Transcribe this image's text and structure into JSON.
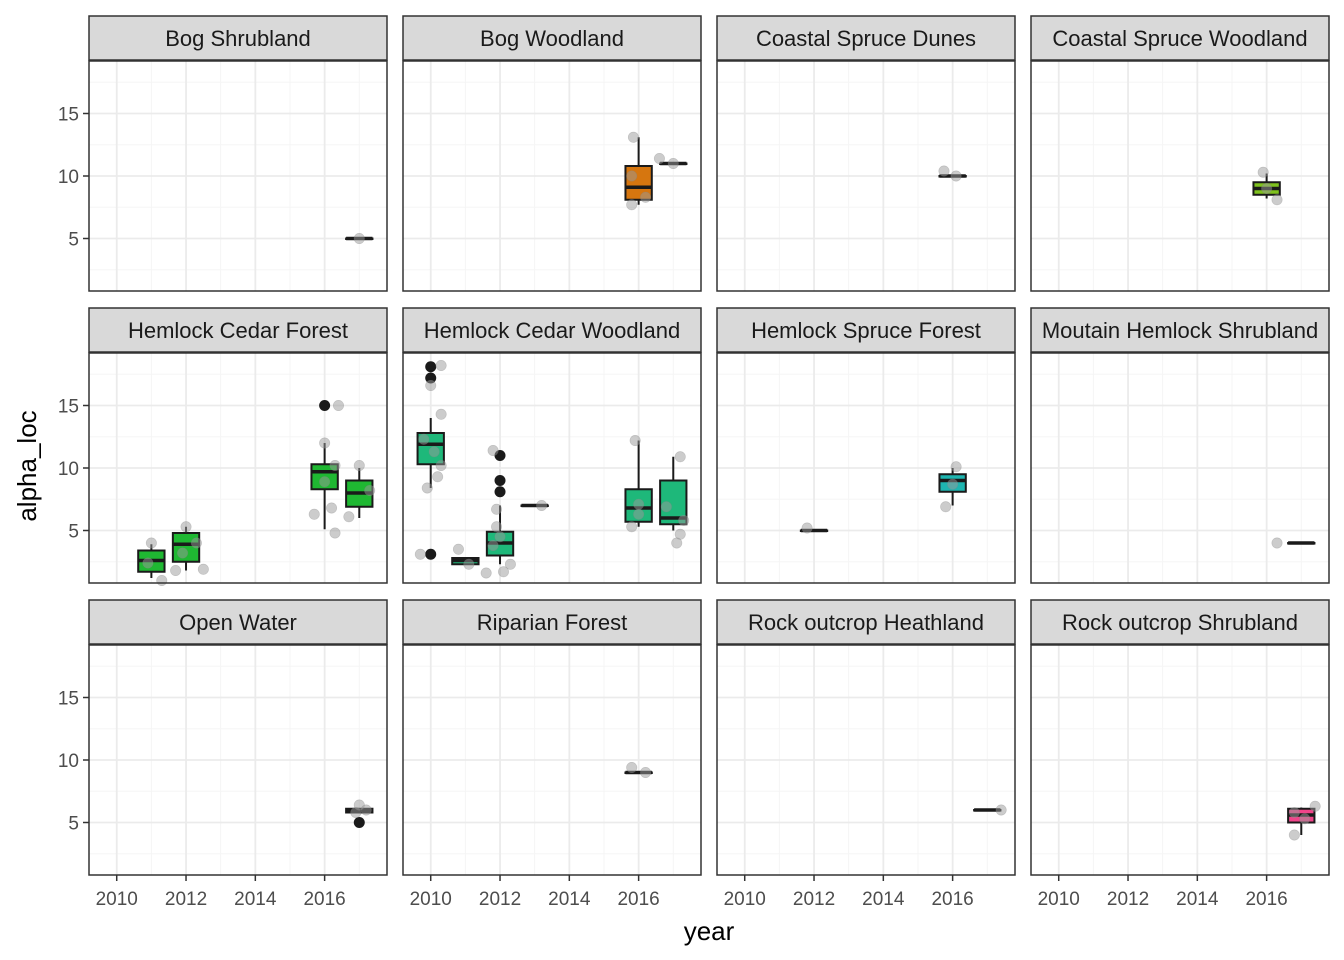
{
  "chart_data": {
    "type": "box",
    "xlabel": "year",
    "ylabel": "alpha_loc",
    "xlim": [
      2009.2,
      2017.8
    ],
    "ylim": [
      0.8,
      19.2
    ],
    "x_ticks": [
      2010,
      2012,
      2014,
      2016
    ],
    "x_tick_labels": [
      "2010",
      "2012",
      "2014",
      "2016"
    ],
    "y_ticks": [
      5,
      10,
      15
    ],
    "y_tick_labels": [
      "5",
      "10",
      "15"
    ],
    "grid": true,
    "legend": "none",
    "colors": {
      "strip_fill": "#d9d9d9",
      "panel_border": "#333333",
      "grid_major": "#ebebeb",
      "grid_minor": "#f5f5f5",
      "point": "#999999",
      "outlier": "#1a1a1a"
    },
    "panels": [
      {
        "title": "Bog Shrubland",
        "color": "#e8ac2a",
        "boxes": [
          {
            "x": 2017,
            "q1": 5,
            "median": 5,
            "q3": 5,
            "whisker_low": 5,
            "whisker_high": 5
          }
        ],
        "points": [
          [
            2017,
            5
          ]
        ],
        "outliers": []
      },
      {
        "title": "Bog Woodland",
        "color": "#d6760f",
        "boxes": [
          {
            "x": 2016,
            "q1": 8.1,
            "median": 9.1,
            "q3": 10.8,
            "whisker_low": 7.7,
            "whisker_high": 13.1
          },
          {
            "x": 2017,
            "q1": 11,
            "median": 11,
            "q3": 11,
            "whisker_low": 11,
            "whisker_high": 11
          }
        ],
        "points": [
          [
            2015.8,
            7.7
          ],
          [
            2016.2,
            8.3
          ],
          [
            2015.8,
            10
          ],
          [
            2015.85,
            13.1
          ],
          [
            2016.6,
            11.4
          ],
          [
            2017,
            11
          ]
        ],
        "outliers": []
      },
      {
        "title": "Coastal Spruce Dunes",
        "color": "#a4a914",
        "boxes": [
          {
            "x": 2016,
            "q1": 10,
            "median": 10,
            "q3": 10,
            "whisker_low": 10,
            "whisker_high": 10
          }
        ],
        "points": [
          [
            2015.75,
            10.4
          ],
          [
            2016.1,
            10
          ]
        ],
        "outliers": []
      },
      {
        "title": "Coastal Spruce Woodland",
        "color": "#7fc21e",
        "boxes": [
          {
            "x": 2016,
            "q1": 8.5,
            "median": 9,
            "q3": 9.5,
            "whisker_low": 8.2,
            "whisker_high": 10.2
          }
        ],
        "points": [
          [
            2015.9,
            10.3
          ],
          [
            2016.3,
            8.1
          ],
          [
            2016,
            9
          ]
        ],
        "outliers": []
      },
      {
        "title": "Hemlock Cedar Forest",
        "color": "#1fb832",
        "boxes": [
          {
            "x": 2011,
            "q1": 1.7,
            "median": 2.6,
            "q3": 3.4,
            "whisker_low": 1.2,
            "whisker_high": 3.9
          },
          {
            "x": 2012,
            "q1": 2.5,
            "median": 3.9,
            "q3": 4.8,
            "whisker_low": 1.8,
            "whisker_high": 5.3
          },
          {
            "x": 2016,
            "q1": 8.3,
            "median": 9.7,
            "q3": 10.3,
            "whisker_low": 5.1,
            "whisker_high": 12.0
          },
          {
            "x": 2017,
            "q1": 6.9,
            "median": 8.0,
            "q3": 9.0,
            "whisker_low": 6.0,
            "whisker_high": 10.0
          }
        ],
        "points": [
          [
            2011.0,
            4.0
          ],
          [
            2011.3,
            1.0
          ],
          [
            2010.9,
            2.4
          ],
          [
            2012.0,
            5.3
          ],
          [
            2011.7,
            1.8
          ],
          [
            2012.3,
            4.0
          ],
          [
            2012.5,
            1.9
          ],
          [
            2011.9,
            3.2
          ],
          [
            2016.0,
            12.0
          ],
          [
            2016.4,
            15.0
          ],
          [
            2015.7,
            6.3
          ],
          [
            2016.3,
            4.8
          ],
          [
            2016.2,
            6.8
          ],
          [
            2016.3,
            10.2
          ],
          [
            2016.0,
            8.9
          ],
          [
            2017.0,
            10.2
          ],
          [
            2016.7,
            6.1
          ],
          [
            2017.3,
            8.2
          ]
        ],
        "outliers": [
          [
            2016,
            15
          ]
        ]
      },
      {
        "title": "Hemlock Cedar Woodland",
        "color": "#1eb87a",
        "boxes": [
          {
            "x": 2010,
            "q1": 10.3,
            "median": 11.9,
            "q3": 12.8,
            "whisker_low": 8.4,
            "whisker_high": 14.0
          },
          {
            "x": 2011,
            "q1": 2.3,
            "median": 2.6,
            "q3": 2.8,
            "whisker_low": 2.3,
            "whisker_high": 2.8
          },
          {
            "x": 2012,
            "q1": 3.0,
            "median": 4.0,
            "q3": 4.9,
            "whisker_low": 2.3,
            "whisker_high": 7.0
          },
          {
            "x": 2013,
            "q1": 7,
            "median": 7,
            "q3": 7,
            "whisker_low": 7,
            "whisker_high": 7
          },
          {
            "x": 2016,
            "q1": 5.7,
            "median": 6.8,
            "q3": 8.3,
            "whisker_low": 5.3,
            "whisker_high": 12.2
          },
          {
            "x": 2017,
            "q1": 5.5,
            "median": 6.0,
            "q3": 9.0,
            "whisker_low": 5.0,
            "whisker_high": 10.9
          }
        ],
        "points": [
          [
            2010.3,
            18.2
          ],
          [
            2010.0,
            16.6
          ],
          [
            2010.3,
            14.3
          ],
          [
            2010.3,
            10.2
          ],
          [
            2009.9,
            8.4
          ],
          [
            2010.2,
            9.3
          ],
          [
            2009.7,
            3.1
          ],
          [
            2010.1,
            11.3
          ],
          [
            2009.8,
            12.3
          ],
          [
            2010.8,
            3.5
          ],
          [
            2011.1,
            2.3
          ],
          [
            2011.8,
            11.4
          ],
          [
            2011.9,
            6.7
          ],
          [
            2011.9,
            5.3
          ],
          [
            2011.8,
            3.8
          ],
          [
            2011.6,
            1.6
          ],
          [
            2012.1,
            1.7
          ],
          [
            2012.3,
            2.3
          ],
          [
            2012.0,
            4.5
          ],
          [
            2013.2,
            7.0
          ],
          [
            2015.9,
            12.2
          ],
          [
            2015.8,
            5.3
          ],
          [
            2016.0,
            6.3
          ],
          [
            2016.0,
            7.1
          ],
          [
            2017.2,
            10.9
          ],
          [
            2017.2,
            4.7
          ],
          [
            2017.1,
            4.0
          ],
          [
            2017.3,
            5.8
          ],
          [
            2016.8,
            6.9
          ]
        ],
        "outliers": [
          [
            2010,
            18.1
          ],
          [
            2010,
            17.2
          ],
          [
            2010,
            3.1
          ],
          [
            2012,
            11
          ],
          [
            2012,
            9
          ],
          [
            2012,
            8.1
          ]
        ]
      },
      {
        "title": "Hemlock Spruce Forest",
        "color": "#1eb5b0",
        "boxes": [
          {
            "x": 2012,
            "q1": 5,
            "median": 5,
            "q3": 5,
            "whisker_low": 5,
            "whisker_high": 5
          },
          {
            "x": 2016,
            "q1": 8.1,
            "median": 9.0,
            "q3": 9.5,
            "whisker_low": 7.0,
            "whisker_high": 10.0
          }
        ],
        "points": [
          [
            2011.8,
            5.2
          ],
          [
            2015.8,
            6.9
          ],
          [
            2016.1,
            10.1
          ],
          [
            2016.0,
            8.7
          ]
        ],
        "outliers": []
      },
      {
        "title": "Moutain Hemlock Shrubland",
        "color": "#4aa3df",
        "boxes": [
          {
            "x": 2017,
            "q1": 4,
            "median": 4,
            "q3": 4,
            "whisker_low": 4,
            "whisker_high": 4
          }
        ],
        "points": [
          [
            2016.3,
            4.0
          ]
        ],
        "outliers": []
      },
      {
        "title": "Open  Water",
        "color": "#8c7ed8",
        "boxes": [
          {
            "x": 2017,
            "q1": 5.8,
            "median": 6.0,
            "q3": 6.1,
            "whisker_low": 5.8,
            "whisker_high": 6.1
          }
        ],
        "points": [
          [
            2017.0,
            6.4
          ],
          [
            2016.9,
            5.8
          ],
          [
            2017.2,
            6.0
          ]
        ],
        "outliers": [
          [
            2017,
            5
          ]
        ]
      },
      {
        "title": "Riparian Forest",
        "color": "#c77cff",
        "boxes": [
          {
            "x": 2016,
            "q1": 9,
            "median": 9,
            "q3": 9,
            "whisker_low": 9,
            "whisker_high": 9
          }
        ],
        "points": [
          [
            2015.8,
            9.4
          ],
          [
            2016.2,
            9.0
          ]
        ],
        "outliers": []
      },
      {
        "title": "Rock  outcrop Heathland",
        "color": "#f564e3",
        "boxes": [
          {
            "x": 2017,
            "q1": 6,
            "median": 6,
            "q3": 6,
            "whisker_low": 6,
            "whisker_high": 6
          }
        ],
        "points": [
          [
            2017.4,
            6.0
          ]
        ],
        "outliers": []
      },
      {
        "title": "Rock  outcrop Shrubland",
        "color": "#f0448a",
        "boxes": [
          {
            "x": 2017,
            "q1": 5.0,
            "median": 5.6,
            "q3": 6.1,
            "whisker_low": 4.0,
            "whisker_high": 6.2
          }
        ],
        "points": [
          [
            2017.4,
            6.3
          ],
          [
            2016.8,
            4.0
          ],
          [
            2016.8,
            5.8
          ],
          [
            2017.1,
            5.3
          ]
        ],
        "outliers": []
      }
    ]
  }
}
